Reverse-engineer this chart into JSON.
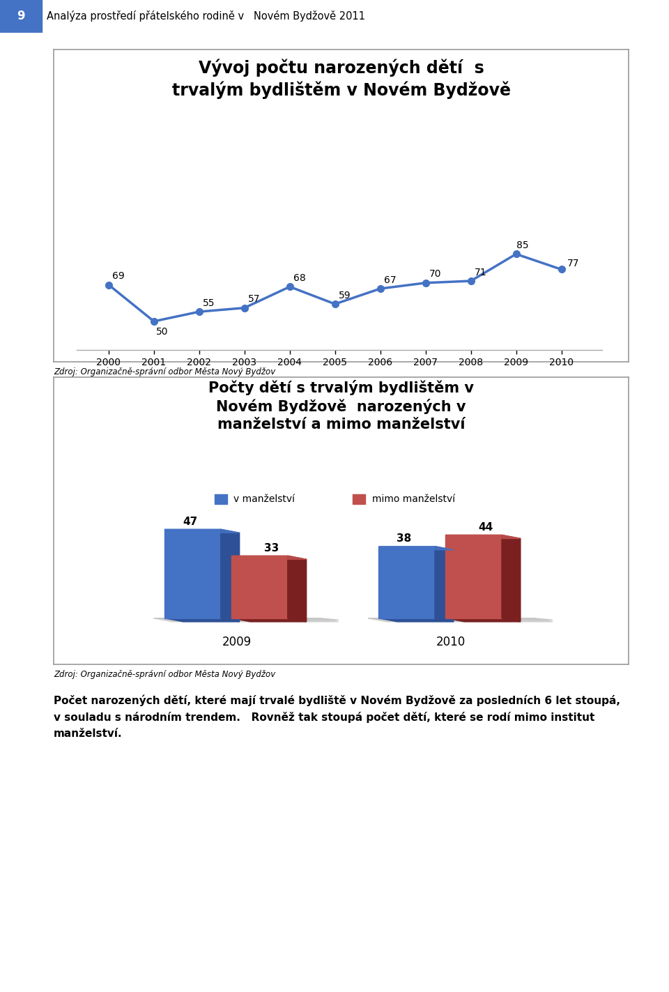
{
  "page_title_num": "9",
  "page_title_text": "Analýza prostředí přátelského rodině v   Novém Bydžově 2011",
  "header_bg": "#4472c4",
  "chart1_title_line1": "Vývoj počtu narozených dětí  s",
  "chart1_title_line2": "trvalým bydlištěm v Novém Bydžově",
  "chart1_years": [
    2000,
    2001,
    2002,
    2003,
    2004,
    2005,
    2006,
    2007,
    2008,
    2009,
    2010
  ],
  "chart1_values": [
    69,
    50,
    55,
    57,
    68,
    59,
    67,
    70,
    71,
    85,
    77
  ],
  "chart1_line_color": "#4472c4",
  "chart1_marker_color": "#4472c4",
  "chart1_source": "Zdroj: Organizačně-správní odbor Města Nový Bydžov",
  "chart2_title_line1": "Počty dětí s trvalým bydlištěm v",
  "chart2_title_line2": "Novém Bydžově  narozených v",
  "chart2_title_line3": "manželství a mimo manželství",
  "chart2_legend_1": "v manželství",
  "chart2_legend_2": "mimo manželství",
  "chart2_years": [
    "2009",
    "2010"
  ],
  "chart2_v_manzelstvi": [
    47,
    38
  ],
  "chart2_mimo_manzelstvi": [
    33,
    44
  ],
  "chart2_bar_color_blue": "#4472c4",
  "chart2_bar_color_red": "#c0504d",
  "chart2_source": "Zdroj: Organizačně-správní odbor Města Nový Bydžov",
  "body_text_line1": "Počet narozených dětí, které mají trvalé bydliště v Novém Bydžově za posledních 6 let stoupá,",
  "body_text_line2": "v souladu s národním trendem.   Rovněž tak stoupá počet dětí, které se rodí mimo institut",
  "body_text_line3": "manželství.",
  "bg_color": "#ffffff",
  "border_color": "#999999",
  "text_color": "#000000",
  "blue_dark": "#2d5096",
  "red_dark": "#7a2020"
}
